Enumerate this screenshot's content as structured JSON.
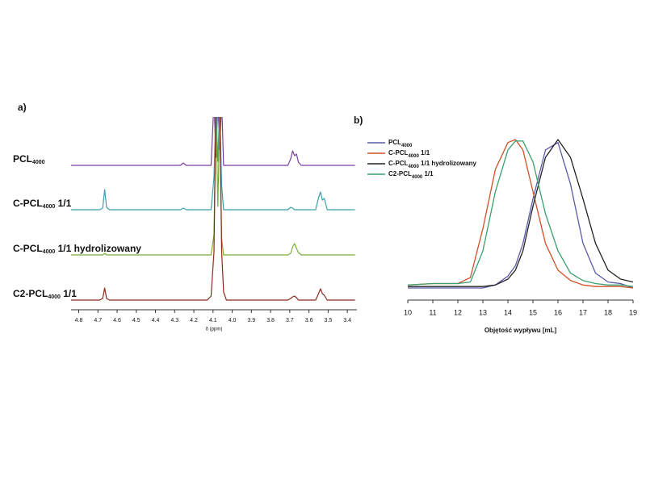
{
  "chart_data": [
    {
      "type": "line",
      "panel_label": "a)",
      "xlabel": "δ (ppm)",
      "xlim": [
        4.84,
        3.35
      ],
      "xticks": [
        4.8,
        4.7,
        4.6,
        4.5,
        4.4,
        4.3,
        4.2,
        4.1,
        {
          "value": 4,
          "label": "4.0"
        },
        3.9,
        3.8,
        3.7,
        3.6,
        3.5,
        3.4
      ],
      "x": [
        4.84,
        4.69,
        4.675,
        4.665,
        4.655,
        4.64,
        4.27,
        4.255,
        4.24,
        4.13,
        4.11,
        4.095,
        4.085,
        4.075,
        4.065,
        4.055,
        4.045,
        4.03,
        3.71,
        3.695,
        3.685,
        3.675,
        3.665,
        3.655,
        3.64,
        3.565,
        3.55,
        3.54,
        3.53,
        3.52,
        3.505,
        3.36
      ],
      "series": [
        {
          "name": "PCL4000",
          "color": "#7b3fa0",
          "values": [
            0,
            0,
            0,
            0,
            0,
            0,
            0,
            3,
            0,
            0,
            0,
            80,
            10,
            80,
            20,
            80,
            0,
            0,
            0,
            8,
            18,
            12,
            14,
            4,
            0,
            0,
            0,
            0,
            0,
            0,
            0,
            0
          ]
        },
        {
          "name": "C-PCL4000 1/1",
          "color": "#3a9fae",
          "values": [
            0,
            0,
            2,
            25,
            3,
            0,
            0,
            2,
            0,
            0,
            0,
            40,
            130,
            60,
            130,
            30,
            0,
            0,
            0,
            3,
            2,
            0,
            0,
            0,
            0,
            0,
            15,
            22,
            12,
            14,
            0,
            0
          ]
        },
        {
          "name": "C-PCL4000 1/1 hydrolizowany",
          "color": "#78ad38",
          "values": [
            0,
            0,
            0,
            2,
            0,
            0,
            0,
            0,
            0,
            0,
            0,
            25,
            180,
            60,
            180,
            20,
            0,
            0,
            0,
            2,
            10,
            14,
            8,
            3,
            0,
            0,
            0,
            0,
            0,
            0,
            0,
            0
          ]
        },
        {
          "name": "C2-PCL4000 1/1",
          "color": "#8b2a1a",
          "values": [
            0,
            0,
            2,
            15,
            2,
            0,
            0,
            0,
            0,
            0,
            5,
            60,
            240,
            230,
            240,
            60,
            10,
            0,
            0,
            2,
            4,
            5,
            3,
            0,
            0,
            0,
            8,
            14,
            8,
            6,
            0,
            0
          ]
        }
      ]
    },
    {
      "type": "line",
      "panel_label": "b)",
      "xlabel": "Objętość wypływu [mL]",
      "xlim": [
        10,
        19
      ],
      "xticks": [
        10,
        11,
        12,
        13,
        14,
        15,
        16,
        17,
        18,
        19
      ],
      "ylim": [
        0,
        1
      ],
      "x": [
        10,
        11,
        12,
        12.5,
        13,
        13.5,
        14,
        14.3,
        14.6,
        15,
        15.5,
        16,
        16.5,
        17,
        17.5,
        18,
        18.5,
        19
      ],
      "series": [
        {
          "name": "PCL4000",
          "color": "#5a5aa8",
          "values": [
            0,
            0,
            0,
            0,
            0,
            0.02,
            0.08,
            0.15,
            0.3,
            0.6,
            0.93,
            0.98,
            0.7,
            0.3,
            0.1,
            0.04,
            0.03,
            0
          ]
        },
        {
          "name": "C-PCL4000 1/1",
          "color": "#d0502a",
          "values": [
            0.02,
            0.03,
            0.03,
            0.07,
            0.4,
            0.8,
            0.98,
            1,
            0.93,
            0.65,
            0.3,
            0.12,
            0.05,
            0.02,
            0.01,
            0.01,
            0.01,
            0
          ]
        },
        {
          "name": "C-PCL4000 1/1 hydrolizowany",
          "color": "#222222",
          "values": [
            0.01,
            0.01,
            0.01,
            0.01,
            0.01,
            0.02,
            0.06,
            0.12,
            0.25,
            0.55,
            0.88,
            1,
            0.88,
            0.6,
            0.3,
            0.12,
            0.06,
            0.04
          ]
        },
        {
          "name": "C2-PCL4000 1/1",
          "color": "#3aa070",
          "values": [
            0.02,
            0.03,
            0.03,
            0.04,
            0.25,
            0.65,
            0.93,
            0.99,
            0.99,
            0.85,
            0.5,
            0.25,
            0.1,
            0.05,
            0.03,
            0.02,
            0.02,
            0.01
          ]
        }
      ]
    }
  ]
}
